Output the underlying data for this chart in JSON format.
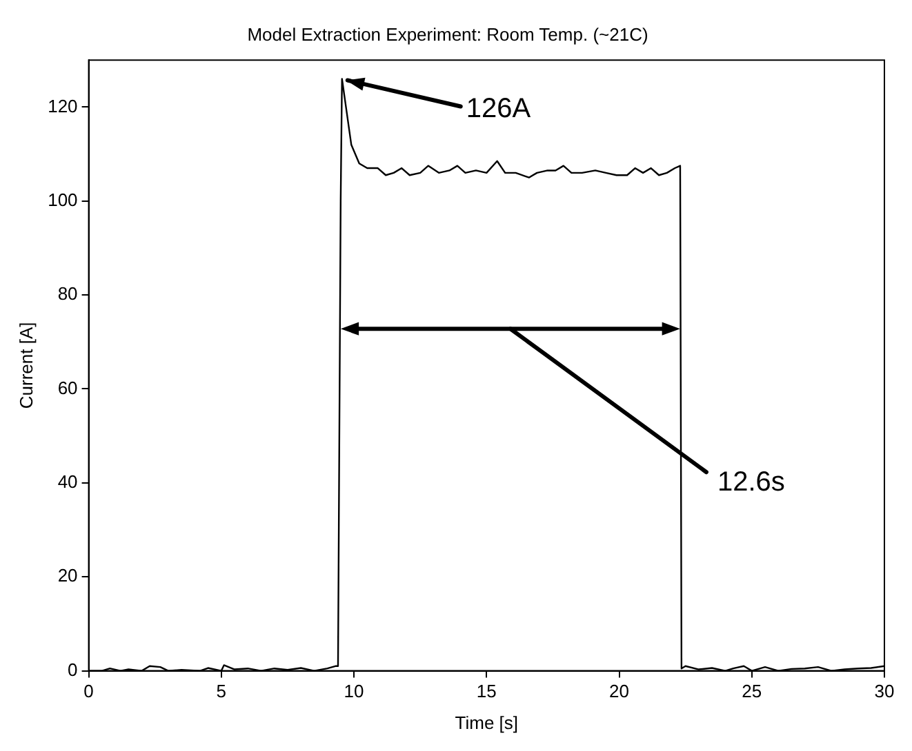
{
  "chart_data": {
    "type": "line",
    "title": "Model Extraction Experiment: Room Temp. (~21C)",
    "xlabel": "Time [s]",
    "ylabel": "Current [A]",
    "x": [
      0,
      0.5,
      0.8,
      1.2,
      1.5,
      2,
      2.3,
      2.7,
      3,
      3.5,
      4.2,
      4.5,
      5,
      5.1,
      5.5,
      6,
      6.5,
      7,
      7.5,
      8,
      8.5,
      9,
      9.3,
      9.4,
      9.5,
      9.55,
      9.7,
      9.9,
      10.2,
      10.5,
      10.9,
      11.2,
      11.5,
      11.8,
      12.1,
      12.5,
      12.8,
      13.2,
      13.6,
      13.9,
      14.2,
      14.6,
      15,
      15.4,
      15.7,
      16.1,
      16.6,
      16.9,
      17.3,
      17.6,
      17.9,
      18.2,
      18.6,
      19.1,
      19.5,
      19.9,
      20.3,
      20.6,
      20.9,
      21.2,
      21.5,
      21.8,
      22.1,
      22.3,
      22.35,
      22.5,
      23,
      23.5,
      24,
      24.3,
      24.7,
      25,
      25.5,
      26,
      26.5,
      27,
      27.5,
      28,
      28.5,
      29,
      29.5,
      30
    ],
    "series": [
      {
        "color": "#000000",
        "values": [
          0,
          0,
          0.5,
          0,
          0.3,
          0,
          1,
          0.8,
          0,
          0.2,
          0,
          0.6,
          0,
          1.2,
          0.3,
          0.5,
          0,
          0.5,
          0.2,
          0.6,
          0,
          0.5,
          1,
          1,
          100,
          126,
          120,
          112,
          108,
          107,
          107,
          105.5,
          106,
          107,
          105.5,
          106,
          107.5,
          106,
          106.5,
          107.5,
          106,
          106.5,
          106,
          108.5,
          106,
          106,
          105,
          106,
          106.5,
          106.5,
          107.5,
          106,
          106,
          106.5,
          106,
          105.5,
          105.5,
          107,
          106,
          107,
          105.5,
          106,
          107,
          107.5,
          0.5,
          1,
          0.3,
          0.6,
          0,
          0.5,
          1,
          0,
          0.8,
          0,
          0.4,
          0.5,
          0.8,
          0,
          0.3,
          0.5,
          0.6,
          1
        ]
      }
    ],
    "xlim": [
      0,
      30
    ],
    "xticks": [
      0,
      5,
      10,
      15,
      20,
      25,
      30
    ],
    "ylim": [
      0,
      130
    ],
    "yticks": [
      0,
      20,
      40,
      60,
      80,
      100,
      120
    ],
    "grid": false,
    "legend": false,
    "marker": "none",
    "line_style": "solid",
    "annotations": [
      {
        "text": "126A",
        "x": 9.55,
        "y": 126
      },
      "12.6s"
    ]
  }
}
